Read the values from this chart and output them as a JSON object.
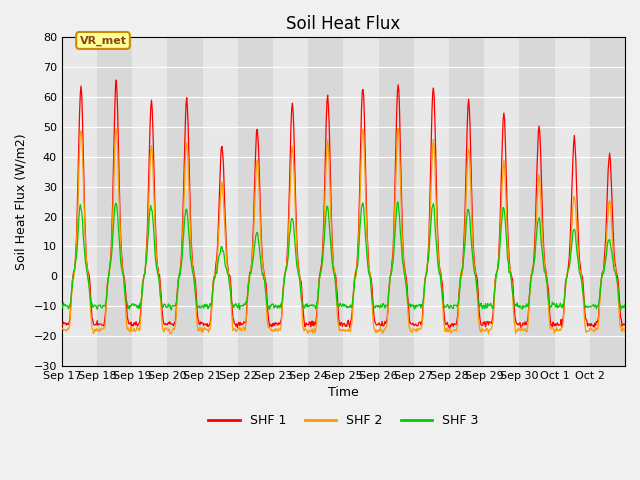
{
  "title": "Soil Heat Flux",
  "ylabel": "Soil Heat Flux (W/m2)",
  "xlabel": "Time",
  "ylim": [
    -30,
    80
  ],
  "yticks": [
    -30,
    -20,
    -10,
    0,
    10,
    20,
    30,
    40,
    50,
    60,
    70,
    80
  ],
  "legend_labels": [
    "SHF 1",
    "SHF 2",
    "SHF 3"
  ],
  "line_colors": [
    "#ff0000",
    "#ff9900",
    "#00cc00"
  ],
  "annotation_text": "VR_met",
  "annotation_bg": "#ffff99",
  "annotation_border": "#cc8800",
  "bg_color": "#f0f0f0",
  "plot_bg": "#e8e8e8",
  "band_color": "#d8d8d8",
  "xtick_labels": [
    "Sep 17",
    "Sep 18",
    "Sep 19",
    "Sep 20",
    "Sep 21",
    "Sep 22",
    "Sep 23",
    "Sep 24",
    "Sep 25",
    "Sep 26",
    "Sep 27",
    "Sep 28",
    "Sep 29",
    "Sep 30",
    "Oct 1",
    "Oct 2"
  ],
  "n_days": 16,
  "start_day": 0,
  "samples_per_day": 48
}
